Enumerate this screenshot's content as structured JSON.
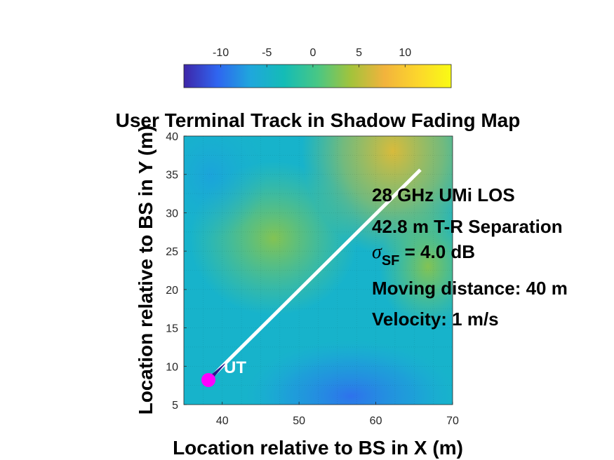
{
  "chart_data": {
    "type": "heatmap",
    "title": "User Terminal Track in Shadow Fading Map",
    "xlabel": "Location relative to BS in X (m)",
    "ylabel": "Location relative to BS in Y (m)",
    "xlim": [
      35,
      70
    ],
    "ylim": [
      5,
      40
    ],
    "x_ticks": [
      "40",
      "50",
      "60",
      "70"
    ],
    "y_ticks": [
      "5",
      "10",
      "15",
      "20",
      "25",
      "30",
      "35",
      "40"
    ],
    "colorbar": {
      "range": [
        -14,
        15
      ],
      "ticks": [
        "-10",
        "-5",
        "0",
        "5",
        "10"
      ],
      "colors": [
        "#3e26a8",
        "#2f65f0",
        "#1fa7dc",
        "#14bcb6",
        "#48c785",
        "#a3c33b",
        "#f2b33d",
        "#fcd62c",
        "#f9fb14"
      ]
    },
    "grid": true,
    "track": {
      "start": [
        38.2,
        8.2
      ],
      "end": [
        65.8,
        35.6
      ],
      "label": "UT",
      "marker_color": "#ff00ff",
      "line_color": "#ffffff"
    },
    "annotations": {
      "line1": "28 GHz UMi LOS",
      "line2": "42.8 m T-R Separation",
      "line3_symbol": "σ",
      "line3_sub": "SF",
      "line3_rest": " = 4.0 dB",
      "line4": "Moving distance: 40 m",
      "line5": "Velocity: 1 m/s"
    }
  }
}
